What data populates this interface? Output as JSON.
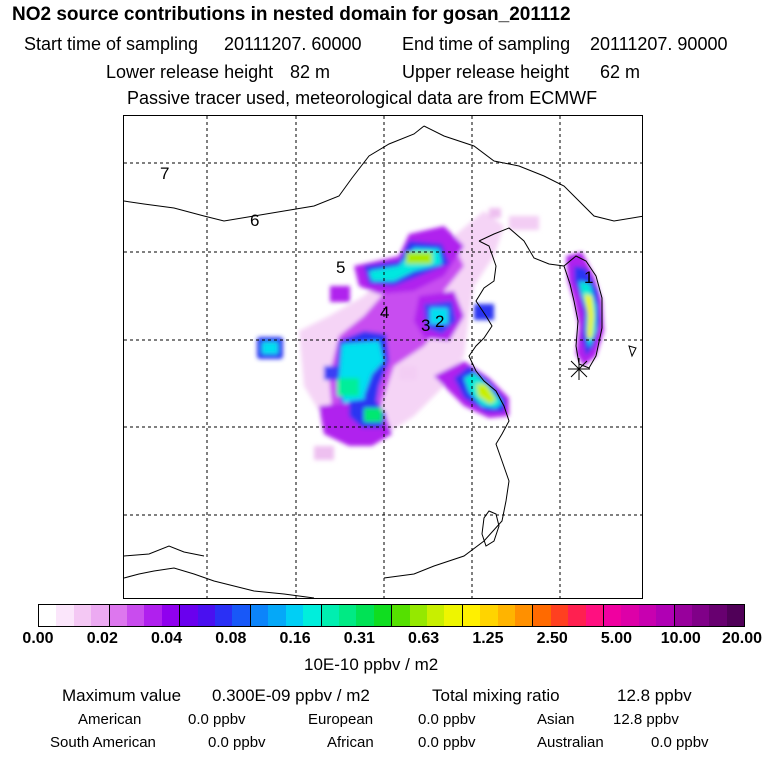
{
  "title": "NO2 source contributions in nested domain for gosan_201112",
  "header": {
    "start_label": "Start time of sampling",
    "start_value": "20111207. 60000",
    "end_label": "End time of sampling",
    "end_value": "20111207. 90000",
    "lower_label": "Lower release height",
    "lower_value": "82 m",
    "upper_label": "Upper release height",
    "upper_value": "62 m",
    "note": "Passive tracer used, meteorological data are from ECMWF"
  },
  "map": {
    "region_labels": [
      "7",
      "6",
      "5",
      "4",
      "3",
      "2",
      "1"
    ],
    "receptor_marker": "asterisk-receptor",
    "gridlines": "dashed"
  },
  "colorbar": {
    "ticks": [
      "0.00",
      "0.02",
      "0.04",
      "0.08",
      "0.16",
      "0.31",
      "0.63",
      "1.25",
      "2.50",
      "5.00",
      "10.00",
      "20.00"
    ],
    "unit": "10E-10 ppbv / m2",
    "colors": [
      "#ffffff",
      "#fbe6fb",
      "#f4c8f4",
      "#ecaaf2",
      "#dd77ee",
      "#c94cee",
      "#b020ee",
      "#9000ee",
      "#6a00ee",
      "#4a10f0",
      "#2a30f5",
      "#1858f8",
      "#0c84fa",
      "#05a8f8",
      "#00cff5",
      "#00eedc",
      "#00eeb0",
      "#00ea84",
      "#00e255",
      "#10dd20",
      "#55e000",
      "#95e800",
      "#c8ef00",
      "#eef500",
      "#fff000",
      "#ffd400",
      "#ffb400",
      "#ff9000",
      "#ff6a00",
      "#ff4020",
      "#ff2050",
      "#ff1080",
      "#f000a0",
      "#dd00a8",
      "#c800b0",
      "#b000b4",
      "#98009c",
      "#800088",
      "#680070",
      "#500058"
    ]
  },
  "stats": {
    "max_label": "Maximum value",
    "max_value": "0.300E-09 ppbv / m2",
    "total_label": "Total mixing ratio",
    "total_value": "12.8 ppbv",
    "american_label": "American",
    "american_value": "0.0 ppbv",
    "european_label": "European",
    "european_value": "0.0 ppbv",
    "asian_label": "Asian",
    "asian_value": "12.8 ppbv",
    "south_american_label": "South American",
    "south_american_value": "0.0 ppbv",
    "african_label": "African",
    "african_value": "0.0 ppbv",
    "australian_label": "Australian",
    "australian_value": "0.0 ppbv"
  }
}
